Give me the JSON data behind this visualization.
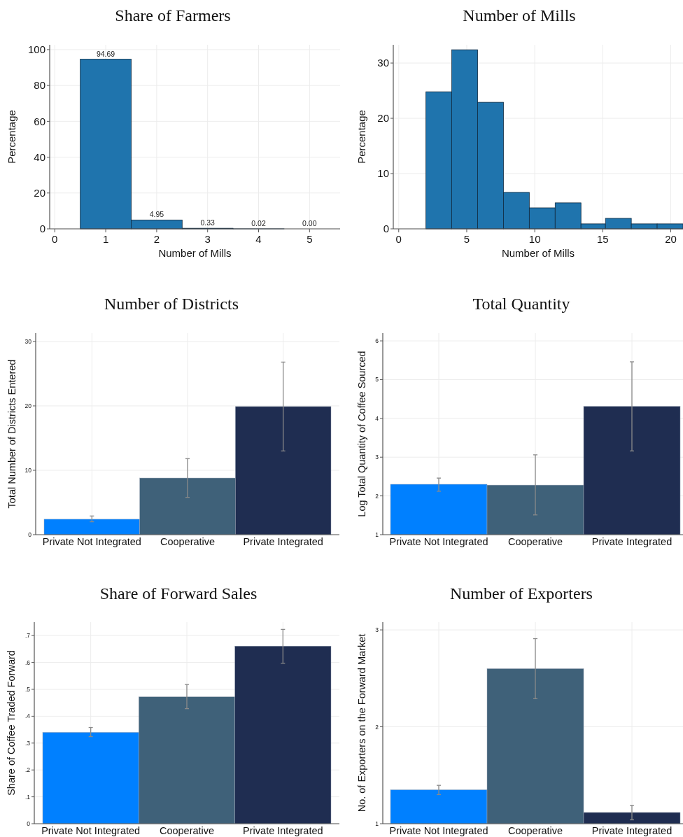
{
  "chart_data": [
    {
      "type": "histogram",
      "title": "Share of Farmers",
      "xlabel": "Number of Mills",
      "ylabel": "Percentage",
      "bins": [
        0.5,
        1.5,
        2.5,
        3.5,
        4.5,
        5.5
      ],
      "values": [
        94.69,
        4.95,
        0.33,
        0.02,
        0
      ],
      "value_labels": [
        "94.69",
        "4.95",
        "0.33",
        "0.02",
        "0.00"
      ],
      "color": "#1f74ad",
      "xlim": [
        -0.1,
        5.6
      ],
      "xticks": [
        0,
        1,
        2,
        3,
        4,
        5
      ],
      "ylim": [
        0,
        102.7
      ],
      "yticks": [
        0,
        20,
        40,
        60,
        80,
        100
      ],
      "grid": true
    },
    {
      "type": "histogram",
      "title": "Number of Mills",
      "xlabel": "Number of Mills",
      "ylabel": "Percentage",
      "bins": [
        2,
        3.9,
        5.8,
        7.7,
        9.6,
        11.5,
        13.4,
        15.2,
        17.1,
        19.0,
        20.9
      ],
      "values": [
        24.8,
        32.4,
        22.9,
        6.6,
        3.8,
        4.7,
        0.9,
        1.9,
        0.9,
        0.9
      ],
      "color": "#1f74ad",
      "xlim": [
        -0.4,
        20.9
      ],
      "xticks": [
        0,
        5,
        10,
        15,
        20
      ],
      "ylim": [
        0,
        33.3
      ],
      "yticks": [
        0,
        10,
        20,
        30
      ],
      "grid": true
    },
    {
      "type": "bar",
      "title": "Number of Districts",
      "ylabel": "Total Number of Districts Entered",
      "categories": [
        "Private Not Integrated",
        "Cooperative",
        "Private Integrated"
      ],
      "values": [
        2.4,
        8.8,
        19.9
      ],
      "errors": [
        [
          2.0,
          2.9
        ],
        [
          5.8,
          11.8
        ],
        [
          13.0,
          26.8
        ]
      ],
      "colors": [
        "#0080ff",
        "#3f6179",
        "#1f2d51"
      ],
      "ylim": [
        0,
        31.3
      ],
      "yticks": [
        0,
        10,
        20,
        30
      ],
      "grid": true
    },
    {
      "type": "bar",
      "title": "Total Quantity",
      "ylabel": "Log Total Quantity of Coffee Sourced",
      "categories": [
        "Private Not Integrated",
        "Cooperative",
        "Private Integrated"
      ],
      "values": [
        2.3,
        2.28,
        4.31
      ],
      "errors": [
        [
          2.12,
          2.46
        ],
        [
          1.51,
          3.06
        ],
        [
          3.16,
          5.46
        ]
      ],
      "colors": [
        "#0080ff",
        "#3f6179",
        "#1f2d51"
      ],
      "ylim": [
        1,
        6.2
      ],
      "yticks": [
        1,
        2,
        3,
        4,
        5,
        6
      ],
      "grid": true
    },
    {
      "type": "bar",
      "title": "Share of Forward Sales",
      "ylabel": "Share of Coffee Traded Forward",
      "categories": [
        "Private Not Integrated",
        "Cooperative",
        "Private Integrated"
      ],
      "values": [
        0.34,
        0.472,
        0.661
      ],
      "errors": [
        [
          0.324,
          0.358
        ],
        [
          0.428,
          0.518
        ],
        [
          0.597,
          0.723
        ]
      ],
      "colors": [
        "#0080ff",
        "#3f6179",
        "#1f2d51"
      ],
      "ylim": [
        0,
        0.75
      ],
      "yticks": [
        0,
        {
          "value": 0.1,
          "label": ".1"
        },
        {
          "value": 0.2,
          "label": ".2"
        },
        {
          "value": 0.3,
          "label": ".3"
        },
        {
          "value": 0.4,
          "label": ".4"
        },
        {
          "value": 0.5,
          "label": ".5"
        },
        {
          "value": 0.6,
          "label": ".6"
        },
        {
          "value": 0.7,
          "label": ".7"
        }
      ],
      "grid": true
    },
    {
      "type": "bar",
      "title": "Number of Exporters",
      "ylabel": "No. of Exporters on the Forward Market",
      "categories": [
        "Private Not Integrated",
        "Cooperative",
        "Private Integrated"
      ],
      "values": [
        1.35,
        2.6,
        1.116
      ],
      "errors": [
        [
          1.3,
          1.396
        ],
        [
          2.29,
          2.91
        ],
        [
          1.04,
          1.19
        ]
      ],
      "colors": [
        "#0080ff",
        "#3f6179",
        "#1f2d51"
      ],
      "ylim": [
        1,
        3.08
      ],
      "yticks": [
        1,
        2,
        3
      ],
      "grid": true
    }
  ]
}
